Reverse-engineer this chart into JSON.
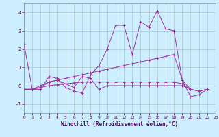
{
  "xlabel": "Windchill (Refroidissement éolien,°C)",
  "background_color": "#cceeff",
  "grid_color": "#aabbbb",
  "line_color": "#993399",
  "xlim": [
    0,
    23
  ],
  "ylim": [
    -1.5,
    4.5
  ],
  "yticks": [
    -1,
    0,
    1,
    2,
    3,
    4
  ],
  "xticks": [
    0,
    1,
    2,
    3,
    4,
    5,
    6,
    7,
    8,
    9,
    10,
    11,
    12,
    13,
    14,
    15,
    16,
    17,
    18,
    19,
    20,
    21,
    22,
    23
  ],
  "series": [
    [
      2.3,
      -0.2,
      -0.2,
      0.5,
      0.4,
      -0.1,
      -0.3,
      -0.4,
      0.6,
      1.1,
      2.0,
      3.3,
      3.3,
      1.7,
      3.5,
      3.2,
      4.1,
      3.1,
      3.0,
      0.3,
      -0.6,
      -0.5,
      -0.2
    ],
    [
      -0.2,
      -0.2,
      -0.1,
      0.2,
      0.3,
      0.1,
      -0.1,
      0.5,
      0.4,
      -0.2,
      0.0,
      0.0,
      0.0,
      0.0,
      0.0,
      0.0,
      0.0,
      0.0,
      0.0,
      0.0,
      -0.2,
      -0.3,
      -0.2
    ],
    [
      -0.2,
      -0.2,
      0.0,
      0.2,
      0.3,
      0.4,
      0.5,
      0.6,
      0.7,
      0.8,
      0.9,
      1.0,
      1.1,
      1.2,
      1.3,
      1.4,
      1.5,
      1.6,
      1.7,
      0.3,
      -0.2,
      -0.3,
      -0.2
    ],
    [
      -0.2,
      -0.2,
      -0.1,
      0.0,
      0.05,
      0.1,
      0.15,
      0.2,
      0.2,
      0.2,
      0.2,
      0.2,
      0.2,
      0.2,
      0.2,
      0.2,
      0.2,
      0.2,
      0.2,
      0.1,
      -0.2,
      -0.3,
      -0.2
    ]
  ],
  "x_values": [
    0,
    1,
    2,
    3,
    4,
    5,
    6,
    7,
    8,
    9,
    10,
    11,
    12,
    13,
    14,
    15,
    16,
    17,
    18,
    19,
    20,
    21,
    22
  ]
}
